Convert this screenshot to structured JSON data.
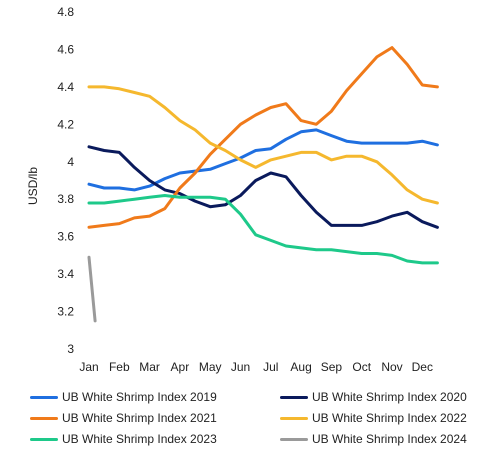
{
  "chart_data": {
    "type": "line",
    "ylabel": "USD/lb",
    "ylim": [
      3.0,
      4.8
    ],
    "yticks": [
      "3",
      "3.2",
      "3.4",
      "3.6",
      "3.8",
      "4",
      "4.2",
      "4.4",
      "4.6",
      "4.8"
    ],
    "categories": [
      "Jan",
      "Feb",
      "Mar",
      "Apr",
      "May",
      "Jun",
      "Jul",
      "Aug",
      "Sep",
      "Oct",
      "Nov",
      "Dec"
    ],
    "grid": false,
    "legend_position": "bottom",
    "series": [
      {
        "name": "UB White Shrimp Index 2019",
        "color": "#1f6fe0",
        "x": [
          1,
          1.5,
          2,
          2.5,
          3,
          3.5,
          4,
          4.5,
          5,
          5.5,
          6,
          6.5,
          7,
          7.5,
          8,
          8.5,
          9,
          9.5,
          10,
          10.5,
          11,
          11.5,
          12,
          12.5
        ],
        "y": [
          3.88,
          3.86,
          3.86,
          3.85,
          3.87,
          3.91,
          3.94,
          3.95,
          3.96,
          3.99,
          4.02,
          4.06,
          4.07,
          4.12,
          4.16,
          4.17,
          4.14,
          4.11,
          4.1,
          4.1,
          4.1,
          4.1,
          4.11,
          4.09
        ]
      },
      {
        "name": "UB White Shrimp Index 2020",
        "color": "#0a1a5c",
        "x": [
          1,
          1.5,
          2,
          2.5,
          3,
          3.5,
          4,
          4.5,
          5,
          5.5,
          6,
          6.5,
          7,
          7.5,
          8,
          8.5,
          9,
          9.5,
          10,
          10.5,
          11,
          11.5,
          12,
          12.5
        ],
        "y": [
          4.08,
          4.06,
          4.05,
          3.97,
          3.9,
          3.85,
          3.83,
          3.79,
          3.76,
          3.77,
          3.82,
          3.9,
          3.94,
          3.92,
          3.82,
          3.73,
          3.66,
          3.66,
          3.66,
          3.68,
          3.71,
          3.73,
          3.68,
          3.65
        ]
      },
      {
        "name": "UB White Shrimp Index 2021",
        "color": "#f07a1a",
        "x": [
          1,
          1.5,
          2,
          2.5,
          3,
          3.5,
          4,
          4.5,
          5,
          5.5,
          6,
          6.5,
          7,
          7.5,
          8,
          8.5,
          9,
          9.5,
          10,
          10.5,
          11,
          11.5,
          12,
          12.5
        ],
        "y": [
          3.65,
          3.66,
          3.67,
          3.7,
          3.71,
          3.75,
          3.86,
          3.94,
          4.04,
          4.12,
          4.2,
          4.25,
          4.29,
          4.31,
          4.22,
          4.2,
          4.27,
          4.38,
          4.47,
          4.56,
          4.61,
          4.52,
          4.41,
          4.4
        ]
      },
      {
        "name": "UB White Shrimp Index 2022",
        "color": "#f5b82e",
        "x": [
          1,
          1.5,
          2,
          2.5,
          3,
          3.5,
          4,
          4.5,
          5,
          5.5,
          6,
          6.5,
          7,
          7.5,
          8,
          8.5,
          9,
          9.5,
          10,
          10.5,
          11,
          11.5,
          12,
          12.5
        ],
        "y": [
          4.4,
          4.4,
          4.39,
          4.37,
          4.35,
          4.29,
          4.22,
          4.17,
          4.1,
          4.06,
          4.01,
          3.97,
          4.01,
          4.03,
          4.05,
          4.05,
          4.01,
          4.03,
          4.03,
          4.0,
          3.93,
          3.85,
          3.8,
          3.78
        ]
      },
      {
        "name": "UB White Shrimp Index 2023",
        "color": "#1ec98a",
        "x": [
          1,
          1.5,
          2,
          2.5,
          3,
          3.5,
          4,
          4.5,
          5,
          5.5,
          6,
          6.5,
          7,
          7.5,
          8,
          8.5,
          9,
          9.5,
          10,
          10.5,
          11,
          11.5,
          12,
          12.5
        ],
        "y": [
          3.78,
          3.78,
          3.79,
          3.8,
          3.81,
          3.82,
          3.81,
          3.81,
          3.81,
          3.8,
          3.72,
          3.61,
          3.58,
          3.55,
          3.54,
          3.53,
          3.53,
          3.52,
          3.51,
          3.51,
          3.5,
          3.47,
          3.46,
          3.46
        ]
      },
      {
        "name": "UB White Shrimp Index 2024",
        "color": "#9a9a9a",
        "x": [
          1,
          1.2
        ],
        "y": [
          3.49,
          3.15
        ]
      }
    ]
  }
}
